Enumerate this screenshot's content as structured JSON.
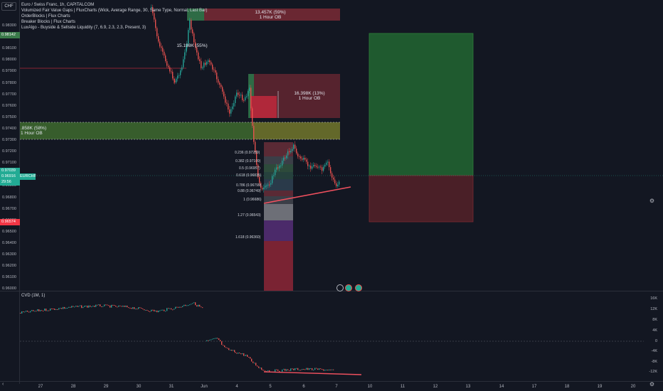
{
  "header": {
    "currency_tag": "CHF",
    "legend": [
      "Euro / Swiss Franc, 1h, CAPITALCOM",
      "Volumized Fair Value Gaps | FluxCharts (Wick, Average Range, 30, Same Type, Normal, Last Bar)",
      "OrderBlocks | Flux Charts",
      "Breaker Blocks | Flux Charts",
      "LuxAlgo - Buyside & Sellside Liquidity (7, 6.9, 2.3, 2.3, Present, 3)"
    ]
  },
  "price_axis": {
    "labels": [
      "0.98300",
      "0.98200",
      "0.98100",
      "0.98000",
      "0.97900",
      "0.97800",
      "0.97700",
      "0.97600",
      "0.97500",
      "0.97400",
      "0.97300",
      "0.97200",
      "0.97100",
      "0.97000",
      "0.96900",
      "0.96800",
      "0.96700",
      "0.96600",
      "0.96500",
      "0.96400",
      "0.96300",
      "0.96200",
      "0.96100",
      "0.96000"
    ],
    "tags": [
      {
        "text": "0.98142",
        "color": "#3a7a4a"
      },
      {
        "text": "0.97039",
        "color": "#22ab94"
      },
      {
        "text": "0.96916",
        "color": "#22ab94"
      },
      {
        "text": "29:56",
        "color": "#22ab94"
      },
      {
        "text": "EURCHF",
        "color": "#22ab94"
      },
      {
        "text": "0.96574",
        "color": "#f23645"
      }
    ]
  },
  "order_blocks": [
    {
      "value": "13.457K (59%)",
      "tf": "1 Hour OB"
    },
    {
      "value": "15.198K (55%)",
      "tf": ""
    },
    {
      "value": "16.398K (13%)",
      "tf": "1 Hour OB"
    },
    {
      "value": ".858K (58%)",
      "tf": "1 Hour OB"
    }
  ],
  "fib_levels": [
    {
      "text": "0.236 (0.97289)",
      "color": "#f23645"
    },
    {
      "text": "0.382 (0.97109)",
      "color": "#ffffff"
    },
    {
      "text": "0.5 (0.96957)",
      "color": "#4caf50"
    },
    {
      "text": "0.618 (0.96835)",
      "color": "#26a69a"
    },
    {
      "text": "0.786 (0.96799)",
      "color": "#ffffff"
    },
    {
      "text": "0.88 (0.96749)",
      "color": "#f23645"
    },
    {
      "text": "1 (0.96686)",
      "color": "#b2b5be"
    },
    {
      "text": "1.27 (0.96543)",
      "color": "#4caf50"
    },
    {
      "text": "1.618 (0.96360)",
      "color": "#26a69a"
    }
  ],
  "cvd": {
    "legend": "CVD (1M, 1)",
    "axis_labels": [
      "16K",
      "12K",
      "8K",
      "4K",
      "0",
      "-4K",
      "-8K",
      "-12K"
    ]
  },
  "time_axis": [
    "27",
    "28",
    "29",
    "30",
    "31",
    "Jun",
    "4",
    "5",
    "6",
    "7",
    "10",
    "11",
    "12",
    "13",
    "14",
    "17",
    "18",
    "19",
    "20"
  ],
  "colors": {
    "background": "#131722",
    "bull": "#26a69a",
    "bear": "#ef5350",
    "accent_green": "#22ab94",
    "accent_red": "#f23645"
  }
}
